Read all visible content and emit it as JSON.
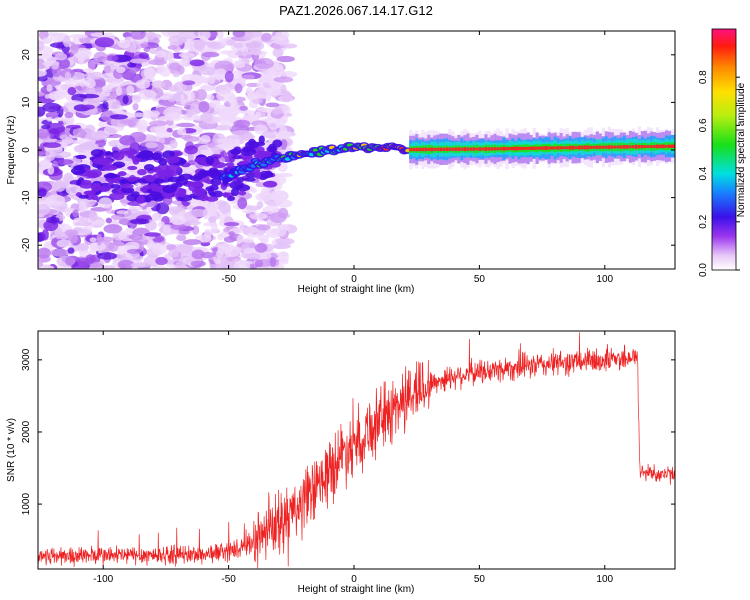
{
  "chart_data": [
    {
      "type": "heatmap",
      "title": "PAZ1.2026.067.14.17.G12",
      "xlabel": "Height of straight line (km)",
      "ylabel": "Frequency (Hz)",
      "xlim": [
        -126,
        128
      ],
      "ylim": [
        -25,
        25
      ],
      "xticks": [
        -100,
        -50,
        0,
        50,
        100
      ],
      "yticks": [
        -20,
        -10,
        0,
        10,
        20
      ],
      "colorbar": {
        "label": "Normalized spectral amplitude",
        "range": [
          0,
          1
        ],
        "ticks": [
          "0.0",
          "0.2",
          "0.4",
          "0.6",
          "0.8"
        ],
        "colormap": "rainbow"
      },
      "ridge": [
        {
          "x": -50,
          "f": -5.5
        },
        {
          "x": -40,
          "f": -3
        },
        {
          "x": -30,
          "f": -1.8
        },
        {
          "x": -20,
          "f": -1
        },
        {
          "x": -10,
          "f": 0
        },
        {
          "x": 0,
          "f": 0.5
        },
        {
          "x": 10,
          "f": 0.6
        },
        {
          "x": 20,
          "f": 0.1
        },
        {
          "x": 50,
          "f": 0.2
        },
        {
          "x": 100,
          "f": 0.6
        },
        {
          "x": 128,
          "f": 0.8
        }
      ]
    },
    {
      "type": "line",
      "xlabel": "Height of straight line (km)",
      "ylabel": "SNR (10 * v/v)",
      "xlim": [
        -126,
        128
      ],
      "ylim": [
        100,
        3400
      ],
      "xticks": [
        -100,
        -50,
        0,
        50,
        100
      ],
      "yticks": [
        1000,
        2000,
        3000
      ],
      "color": "#ee2222",
      "envelope": [
        {
          "x": -126,
          "y": 280
        },
        {
          "x": -60,
          "y": 300
        },
        {
          "x": -45,
          "y": 380
        },
        {
          "x": -35,
          "y": 600
        },
        {
          "x": -25,
          "y": 850
        },
        {
          "x": -15,
          "y": 1200
        },
        {
          "x": -5,
          "y": 1700
        },
        {
          "x": 5,
          "y": 2000
        },
        {
          "x": 15,
          "y": 2300
        },
        {
          "x": 25,
          "y": 2600
        },
        {
          "x": 40,
          "y": 2780
        },
        {
          "x": 60,
          "y": 2880
        },
        {
          "x": 80,
          "y": 2950
        },
        {
          "x": 100,
          "y": 3000
        },
        {
          "x": 113,
          "y": 3050
        },
        {
          "x": 114,
          "y": 1450
        },
        {
          "x": 128,
          "y": 1400
        }
      ]
    }
  ]
}
